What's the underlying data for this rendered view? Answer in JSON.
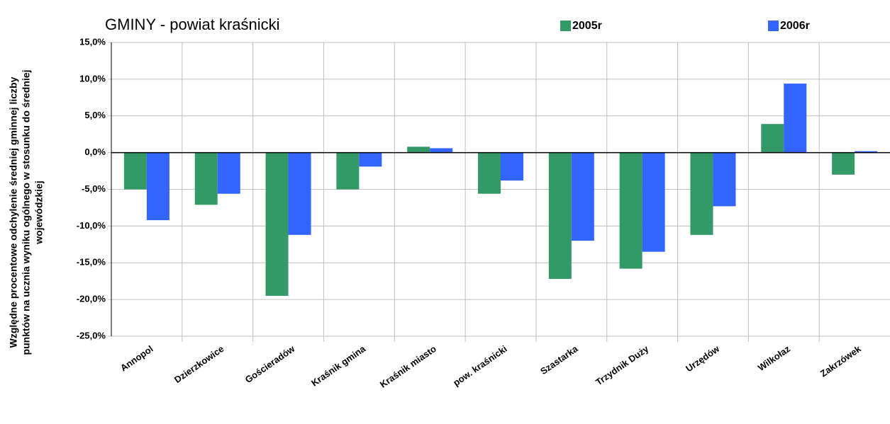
{
  "chart_data": {
    "type": "bar",
    "title": "GMINY -   powiat kraśnicki",
    "y_label": [
      "Względne procentowe odchylenie średniej gminnej liczby",
      "punktów na ucznia wyniku ogólnego w stosunku do średniej",
      "wojewódzkiej"
    ],
    "categories": [
      "Annopol",
      "Dzierzkowice",
      "Gościeradów",
      "Kraśnik gmina",
      "Kraśnik miasto",
      "pow. kraśnicki",
      "Szastarka",
      "Trzydnik Duży",
      "Urzędów",
      "Wilkołaz",
      "Zakrzówek"
    ],
    "series": [
      {
        "name": "2005r",
        "color": "#339966",
        "values": [
          -5.0,
          -7.1,
          -19.5,
          -5.0,
          0.8,
          -5.6,
          -17.2,
          -15.8,
          -11.2,
          3.9,
          -3.0
        ]
      },
      {
        "name": "2006r",
        "color": "#3366ff",
        "values": [
          -9.2,
          -5.6,
          -11.2,
          -1.9,
          0.6,
          -3.8,
          -12.0,
          -13.5,
          -7.3,
          9.4,
          0.2
        ]
      }
    ],
    "ylim": [
      -25,
      15
    ],
    "yticks": [
      {
        "value": 15,
        "label": "15,0%"
      },
      {
        "value": 10,
        "label": "10,0%"
      },
      {
        "value": 5,
        "label": "5,0%"
      },
      {
        "value": 0,
        "label": "0,0%"
      },
      {
        "value": -5,
        "label": "-5,0%"
      },
      {
        "value": -10,
        "label": "-10,0%"
      },
      {
        "value": -15,
        "label": "-15,0%"
      },
      {
        "value": -20,
        "label": "-20,0%"
      },
      {
        "value": -25,
        "label": "-25,0%"
      }
    ],
    "grid": true
  }
}
